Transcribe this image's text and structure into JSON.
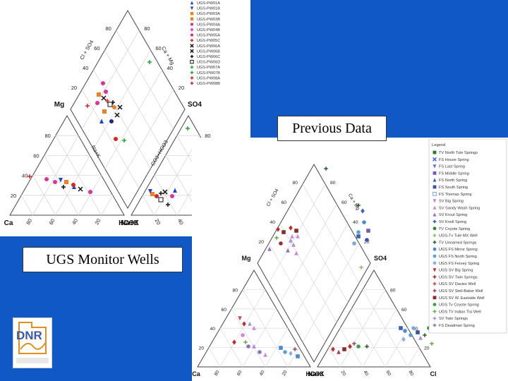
{
  "slide": {
    "previous_title": "Previous Data",
    "ugs_title": "UGS Monitor Wells"
  },
  "left_diagram": {
    "labels": {
      "mg": "Mg",
      "so4": "SO4",
      "ca": "Ca",
      "nak": "Na+K",
      "hco3": "HCO3",
      "cl": "Cl",
      "cl_so4": "Cl + SO4",
      "ca_mg": "Ca + Mg",
      "na_k": "Na+K",
      "co3_hco3": "CO3+HCO3"
    },
    "ticks": {
      "80": "80",
      "60": "60",
      "40": "40",
      "20": "20"
    },
    "legend": [
      "UGS-PW01A",
      "UGS-PW01B",
      "UGS-PW03A",
      "UGS-PW03B",
      "UGS-PW04A",
      "UGS-PW04B",
      "UGS-PW05A",
      "UGS-PW05C",
      "UGS-PW06A",
      "UGS-PW06B",
      "UGS-PW06C",
      "UGS-PW06D",
      "UGS-PW07A",
      "UGS-PW07B",
      "UGS-PW08A",
      "UGS-PW08B"
    ],
    "colors": {
      "blue": "#2244cc",
      "orange": "#f08020",
      "red": "#dd2222",
      "magenta": "#e0309a",
      "black": "#111111",
      "green": "#22aa33",
      "navy": "#1a2a88"
    }
  },
  "right_diagram": {
    "labels": {
      "mg": "Mg",
      "so4": "SO4",
      "ca": "Ca",
      "nak": "Na+K",
      "hco3": "HCO3",
      "cl": "Cl",
      "cl_so4": "Cl + SO4",
      "ca_mg": "Ca + Mg"
    },
    "ticks": {
      "80": "80",
      "60": "60",
      "40": "40",
      "20": "20"
    },
    "legend_title": "Legend",
    "legend": [
      "TV North Tule Springs",
      "FS House Spring",
      "FS Last Spring",
      "FS Middle Spring",
      "FS North Spring",
      "FS South Spring",
      "FS Thomas Spring",
      "SV Big Spring",
      "SV Sandy Wash Spring",
      "SV Krout Spring",
      "SV Knoll Spring",
      "TV Coyote Spring",
      "UGS-Tv Tule MX Well",
      "TV Unnamed Springs",
      "UGS FS Mirror Spring",
      "UGS FS North Spring",
      "UGS FS Fersey Spring",
      "UGS SV Big Spring",
      "UGS SV Twin Springs",
      "UGS SV Davies Well",
      "UGS SV Steil-Baker Well",
      "UGS SV W. Eastside Well",
      "UGS Tv Coyote Spring",
      "UGS TV Indian Tisi Well",
      "SV Twin Springs",
      "FS Deadman Spring"
    ],
    "legend_colors": [
      "#2a7a2a",
      "#3a64c8",
      "#5a6ed8",
      "#7a5ab8",
      "#3e60b0",
      "#3a52a8",
      "#7aa6d8",
      "#b08ad8",
      "#c98ad8",
      "#9a6ac8",
      "#2a5aa8",
      "#2a8a3a",
      "#8ac060",
      "#2a5a2a",
      "#4a8ad0",
      "#58a0d8",
      "#90b0d8",
      "#c02a2a",
      "#a02a2a",
      "#d04a4a",
      "#a04060",
      "#902a2a",
      "#3aa04a",
      "#60b040",
      "#9a9ad8",
      "#8a70c0"
    ]
  },
  "logo": {
    "text": "DNR",
    "subtitle": "UTAH GEOLOGICAL SURVEY"
  }
}
